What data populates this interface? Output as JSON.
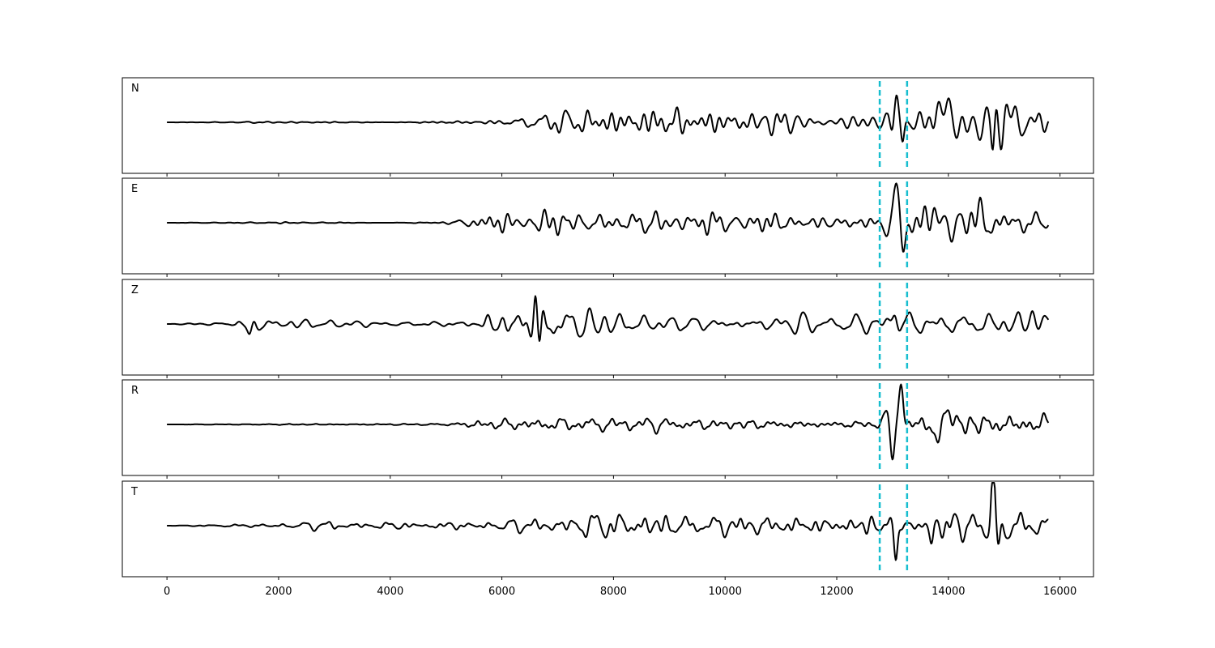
{
  "chart_data": {
    "type": "line",
    "xlim": [
      -800,
      16600
    ],
    "x_ticks": [
      0,
      2000,
      4000,
      6000,
      8000,
      10000,
      12000,
      14000,
      16000
    ],
    "x_tick_labels": [
      "0",
      "2000",
      "4000",
      "6000",
      "8000",
      "10000",
      "12000",
      "14000",
      "16000"
    ],
    "trace_x_range": [
      0,
      15800
    ],
    "markers": [
      12770,
      13260
    ],
    "grid": false,
    "panels": [
      {
        "label": "N",
        "anchors": [
          [
            0,
            0
          ],
          [
            2000,
            0.03
          ],
          [
            4000,
            0
          ],
          [
            6000,
            0.05
          ],
          [
            7000,
            0.25
          ],
          [
            8000,
            0.3
          ],
          [
            9000,
            0.25
          ],
          [
            10000,
            0.22
          ],
          [
            11000,
            0.28
          ],
          [
            12000,
            0.2
          ],
          [
            12700,
            0.2
          ],
          [
            12900,
            0.3
          ],
          [
            13050,
            0.7
          ],
          [
            13200,
            0.3
          ],
          [
            13500,
            0.35
          ],
          [
            14000,
            0.45
          ],
          [
            14500,
            0.5
          ],
          [
            14800,
            0.8
          ],
          [
            15200,
            0.5
          ],
          [
            15800,
            0.3
          ]
        ],
        "events": [
          [
            13060,
            0.6,
            40
          ],
          [
            13180,
            -0.5,
            30
          ],
          [
            13800,
            0.35,
            50
          ],
          [
            14000,
            0.45,
            50
          ],
          [
            14300,
            -0.3,
            50
          ],
          [
            14800,
            -0.85,
            30
          ],
          [
            15000,
            0.4,
            40
          ]
        ]
      },
      {
        "label": "E",
        "anchors": [
          [
            0,
            0
          ],
          [
            2000,
            0.02
          ],
          [
            4000,
            0
          ],
          [
            5000,
            0.03
          ],
          [
            5600,
            0.2
          ],
          [
            6500,
            0.3
          ],
          [
            7500,
            0.3
          ],
          [
            9000,
            0.25
          ],
          [
            10000,
            0.25
          ],
          [
            11000,
            0.28
          ],
          [
            12000,
            0.15
          ],
          [
            12700,
            0.15
          ],
          [
            12900,
            0.2
          ],
          [
            13200,
            0.3
          ],
          [
            13600,
            0.4
          ],
          [
            14500,
            0.4
          ],
          [
            15800,
            0.35
          ]
        ],
        "events": [
          [
            12900,
            -0.25,
            40
          ],
          [
            13060,
            0.85,
            50
          ],
          [
            13180,
            -0.65,
            40
          ],
          [
            13800,
            0.35,
            60
          ],
          [
            14050,
            -0.35,
            50
          ],
          [
            14400,
            0.3,
            50
          ]
        ]
      },
      {
        "label": "Z",
        "anchors": [
          [
            0,
            0
          ],
          [
            1200,
            0.05
          ],
          [
            1500,
            0.35
          ],
          [
            1700,
            0.15
          ],
          [
            2500,
            0.1
          ],
          [
            4000,
            0.05
          ],
          [
            5000,
            0.1
          ],
          [
            5500,
            0.1
          ],
          [
            5800,
            0.45
          ],
          [
            6200,
            0.5
          ],
          [
            6650,
            0.85
          ],
          [
            7000,
            0.6
          ],
          [
            7500,
            0.4
          ],
          [
            8000,
            0.3
          ],
          [
            9000,
            0.2
          ],
          [
            10000,
            0.2
          ],
          [
            11000,
            0.2
          ],
          [
            12000,
            0.2
          ],
          [
            13000,
            0.3
          ],
          [
            14000,
            0.35
          ],
          [
            15800,
            0.3
          ]
        ],
        "events": [
          [
            1500,
            -0.35,
            40
          ],
          [
            6600,
            0.8,
            30
          ],
          [
            6680,
            -0.75,
            30
          ],
          [
            13050,
            0.3,
            40
          ],
          [
            15500,
            0.3,
            40
          ]
        ]
      },
      {
        "label": "R",
        "anchors": [
          [
            0,
            0
          ],
          [
            2000,
            0.02
          ],
          [
            4000,
            0.02
          ],
          [
            5000,
            0.03
          ],
          [
            5600,
            0.15
          ],
          [
            6500,
            0.2
          ],
          [
            7500,
            0.2
          ],
          [
            9000,
            0.17
          ],
          [
            10000,
            0.17
          ],
          [
            11000,
            0.15
          ],
          [
            12000,
            0.12
          ],
          [
            12700,
            0.12
          ],
          [
            13000,
            0.2
          ],
          [
            13300,
            0.25
          ],
          [
            13700,
            0.35
          ],
          [
            15800,
            0.3
          ]
        ],
        "events": [
          [
            12900,
            0.3,
            50
          ],
          [
            13000,
            -0.8,
            40
          ],
          [
            13150,
            0.95,
            40
          ],
          [
            13800,
            -0.4,
            50
          ],
          [
            14000,
            0.35,
            60
          ]
        ]
      },
      {
        "label": "T",
        "anchors": [
          [
            0,
            0
          ],
          [
            2000,
            0.05
          ],
          [
            3000,
            0.1
          ],
          [
            4000,
            0.08
          ],
          [
            5000,
            0.1
          ],
          [
            6000,
            0.12
          ],
          [
            7000,
            0.2
          ],
          [
            7500,
            0.3
          ],
          [
            8000,
            0.35
          ],
          [
            8800,
            0.35
          ],
          [
            9500,
            0.25
          ],
          [
            10500,
            0.25
          ],
          [
            11000,
            0.3
          ],
          [
            12000,
            0.25
          ],
          [
            12600,
            0.3
          ],
          [
            13000,
            0.35
          ],
          [
            13300,
            0.2
          ],
          [
            13700,
            0.2
          ],
          [
            14000,
            0.45
          ],
          [
            14500,
            0.3
          ],
          [
            14800,
            0.5
          ],
          [
            15200,
            0.35
          ],
          [
            15800,
            0.3
          ]
        ],
        "events": [
          [
            13060,
            -0.7,
            30
          ],
          [
            14800,
            1.0,
            35
          ],
          [
            14900,
            -0.6,
            35
          ],
          [
            13700,
            -0.4,
            30
          ]
        ]
      }
    ]
  }
}
